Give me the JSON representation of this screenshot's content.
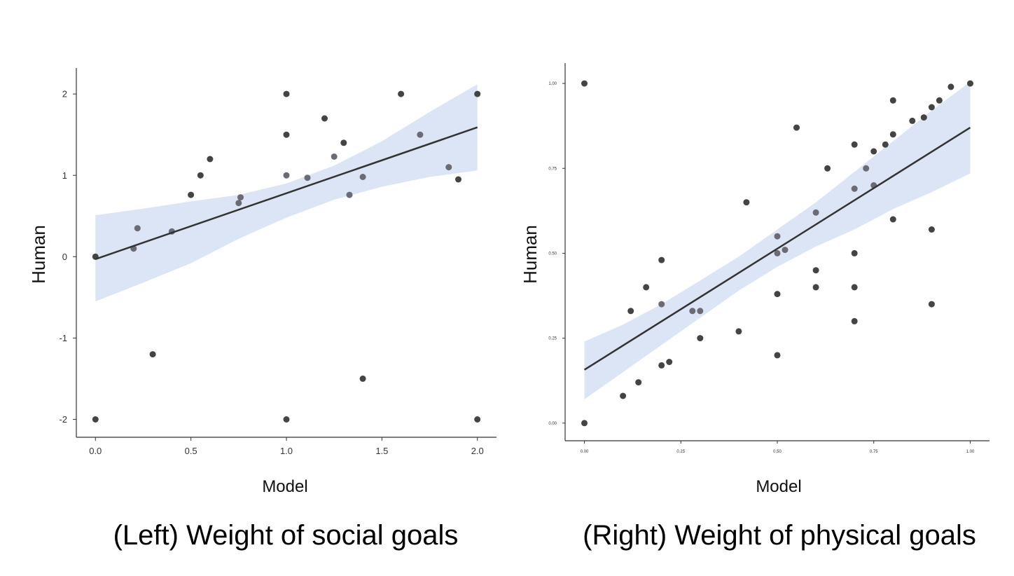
{
  "colors": {
    "band": "#dce5f6",
    "fit_line": "#333333",
    "point_dark": "#444444",
    "point_light": "#6b6b75",
    "axis": "#333333"
  },
  "captions": {
    "left": "(Left) Weight of social goals",
    "right": "(Right) Weight of physical goals"
  },
  "chart_data": [
    {
      "type": "scatter",
      "xlabel": "Model",
      "ylabel": "Human",
      "xlim": [
        -0.1,
        2.1
      ],
      "ylim": [
        -2.22,
        2.32
      ],
      "xticks": [
        0.0,
        0.5,
        1.0,
        1.5,
        2.0
      ],
      "xtick_labels": [
        "0.0",
        "0.5",
        "1.0",
        "1.5",
        "2.0"
      ],
      "yticks": [
        -2,
        -1,
        0,
        1,
        2
      ],
      "ytick_labels": [
        "-2",
        "-1",
        "0",
        "1",
        "2"
      ],
      "grid": false,
      "fit": {
        "x": [
          0.0,
          2.0
        ],
        "y": [
          -0.03,
          1.59
        ]
      },
      "confidence_band": {
        "x": [
          0.0,
          0.25,
          0.5,
          0.75,
          1.0,
          1.25,
          1.5,
          1.75,
          2.0
        ],
        "lower": [
          -0.55,
          -0.32,
          -0.08,
          0.22,
          0.48,
          0.7,
          0.86,
          0.98,
          1.06
        ],
        "upper": [
          0.51,
          0.59,
          0.68,
          0.76,
          0.9,
          1.12,
          1.42,
          1.78,
          2.12
        ]
      },
      "points": [
        {
          "x": 0.0,
          "y": 0.0,
          "tone": "dark"
        },
        {
          "x": 0.0,
          "y": -2.0,
          "tone": "dark"
        },
        {
          "x": 0.2,
          "y": 0.1,
          "tone": "light"
        },
        {
          "x": 0.22,
          "y": 0.35,
          "tone": "light"
        },
        {
          "x": 0.3,
          "y": -1.2,
          "tone": "dark"
        },
        {
          "x": 0.4,
          "y": 0.31,
          "tone": "light"
        },
        {
          "x": 0.5,
          "y": 0.76,
          "tone": "dark"
        },
        {
          "x": 0.55,
          "y": 1.0,
          "tone": "dark"
        },
        {
          "x": 0.6,
          "y": 1.2,
          "tone": "dark"
        },
        {
          "x": 0.75,
          "y": 0.66,
          "tone": "light"
        },
        {
          "x": 0.76,
          "y": 0.73,
          "tone": "light"
        },
        {
          "x": 1.0,
          "y": 2.0,
          "tone": "dark"
        },
        {
          "x": 1.0,
          "y": 1.5,
          "tone": "dark"
        },
        {
          "x": 1.0,
          "y": 1.0,
          "tone": "light"
        },
        {
          "x": 1.0,
          "y": -2.0,
          "tone": "dark"
        },
        {
          "x": 1.11,
          "y": 0.97,
          "tone": "light"
        },
        {
          "x": 1.2,
          "y": 1.7,
          "tone": "dark"
        },
        {
          "x": 1.25,
          "y": 1.23,
          "tone": "light"
        },
        {
          "x": 1.3,
          "y": 1.4,
          "tone": "dark"
        },
        {
          "x": 1.33,
          "y": 0.76,
          "tone": "light"
        },
        {
          "x": 1.4,
          "y": 0.98,
          "tone": "light"
        },
        {
          "x": 1.4,
          "y": -1.5,
          "tone": "dark"
        },
        {
          "x": 1.6,
          "y": 2.0,
          "tone": "dark"
        },
        {
          "x": 1.7,
          "y": 1.5,
          "tone": "light"
        },
        {
          "x": 1.85,
          "y": 1.1,
          "tone": "light"
        },
        {
          "x": 1.9,
          "y": 0.95,
          "tone": "dark"
        },
        {
          "x": 2.0,
          "y": 2.0,
          "tone": "dark"
        },
        {
          "x": 2.0,
          "y": -2.0,
          "tone": "dark"
        }
      ]
    },
    {
      "type": "scatter",
      "xlabel": "Model",
      "ylabel": "Human",
      "xlim": [
        -0.05,
        1.05
      ],
      "ylim": [
        -0.052,
        1.06
      ],
      "xticks": [
        0.0,
        0.25,
        0.5,
        0.75,
        1.0
      ],
      "xtick_labels": [
        "0.00",
        "0.25",
        "0.50",
        "0.75",
        "1.00"
      ],
      "yticks": [
        0.0,
        0.25,
        0.5,
        0.75,
        1.0
      ],
      "ytick_labels": [
        "0.00",
        "0.25",
        "0.50",
        "0.75",
        "1.00"
      ],
      "grid": false,
      "fit": {
        "x": [
          0.0,
          1.0
        ],
        "y": [
          0.157,
          0.87
        ]
      },
      "confidence_band": {
        "x": [
          0.0,
          0.1,
          0.2,
          0.3,
          0.4,
          0.5,
          0.6,
          0.7,
          0.8,
          0.9,
          1.0
        ],
        "lower": [
          0.07,
          0.15,
          0.23,
          0.31,
          0.39,
          0.46,
          0.52,
          0.57,
          0.63,
          0.68,
          0.735
        ],
        "upper": [
          0.24,
          0.29,
          0.35,
          0.42,
          0.49,
          0.57,
          0.65,
          0.74,
          0.83,
          0.92,
          1.005
        ]
      },
      "points": [
        {
          "x": 0.0,
          "y": 1.0,
          "tone": "dark"
        },
        {
          "x": 0.0,
          "y": 0.0,
          "tone": "dark"
        },
        {
          "x": 0.1,
          "y": 0.08,
          "tone": "dark"
        },
        {
          "x": 0.12,
          "y": 0.33,
          "tone": "dark"
        },
        {
          "x": 0.14,
          "y": 0.12,
          "tone": "dark"
        },
        {
          "x": 0.16,
          "y": 0.4,
          "tone": "dark"
        },
        {
          "x": 0.2,
          "y": 0.48,
          "tone": "dark"
        },
        {
          "x": 0.2,
          "y": 0.35,
          "tone": "light"
        },
        {
          "x": 0.2,
          "y": 0.17,
          "tone": "dark"
        },
        {
          "x": 0.22,
          "y": 0.18,
          "tone": "dark"
        },
        {
          "x": 0.28,
          "y": 0.33,
          "tone": "light"
        },
        {
          "x": 0.3,
          "y": 0.33,
          "tone": "light"
        },
        {
          "x": 0.3,
          "y": 0.25,
          "tone": "dark"
        },
        {
          "x": 0.4,
          "y": 0.27,
          "tone": "dark"
        },
        {
          "x": 0.42,
          "y": 0.65,
          "tone": "dark"
        },
        {
          "x": 0.5,
          "y": 0.55,
          "tone": "light"
        },
        {
          "x": 0.5,
          "y": 0.5,
          "tone": "light"
        },
        {
          "x": 0.5,
          "y": 0.38,
          "tone": "dark"
        },
        {
          "x": 0.5,
          "y": 0.2,
          "tone": "dark"
        },
        {
          "x": 0.52,
          "y": 0.51,
          "tone": "light"
        },
        {
          "x": 0.55,
          "y": 0.87,
          "tone": "dark"
        },
        {
          "x": 0.6,
          "y": 0.62,
          "tone": "light"
        },
        {
          "x": 0.6,
          "y": 0.45,
          "tone": "dark"
        },
        {
          "x": 0.6,
          "y": 0.4,
          "tone": "dark"
        },
        {
          "x": 0.63,
          "y": 0.75,
          "tone": "dark"
        },
        {
          "x": 0.7,
          "y": 0.82,
          "tone": "dark"
        },
        {
          "x": 0.7,
          "y": 0.69,
          "tone": "light"
        },
        {
          "x": 0.7,
          "y": 0.5,
          "tone": "dark"
        },
        {
          "x": 0.7,
          "y": 0.4,
          "tone": "dark"
        },
        {
          "x": 0.7,
          "y": 0.3,
          "tone": "dark"
        },
        {
          "x": 0.73,
          "y": 0.75,
          "tone": "light"
        },
        {
          "x": 0.75,
          "y": 0.8,
          "tone": "dark"
        },
        {
          "x": 0.75,
          "y": 0.7,
          "tone": "light"
        },
        {
          "x": 0.78,
          "y": 0.82,
          "tone": "dark"
        },
        {
          "x": 0.8,
          "y": 0.95,
          "tone": "dark"
        },
        {
          "x": 0.8,
          "y": 0.85,
          "tone": "dark"
        },
        {
          "x": 0.8,
          "y": 0.6,
          "tone": "dark"
        },
        {
          "x": 0.85,
          "y": 0.89,
          "tone": "dark"
        },
        {
          "x": 0.88,
          "y": 0.9,
          "tone": "dark"
        },
        {
          "x": 0.9,
          "y": 0.93,
          "tone": "dark"
        },
        {
          "x": 0.9,
          "y": 0.57,
          "tone": "dark"
        },
        {
          "x": 0.9,
          "y": 0.35,
          "tone": "dark"
        },
        {
          "x": 0.92,
          "y": 0.95,
          "tone": "dark"
        },
        {
          "x": 0.95,
          "y": 0.99,
          "tone": "dark"
        },
        {
          "x": 1.0,
          "y": 1.0,
          "tone": "dark"
        }
      ]
    }
  ]
}
